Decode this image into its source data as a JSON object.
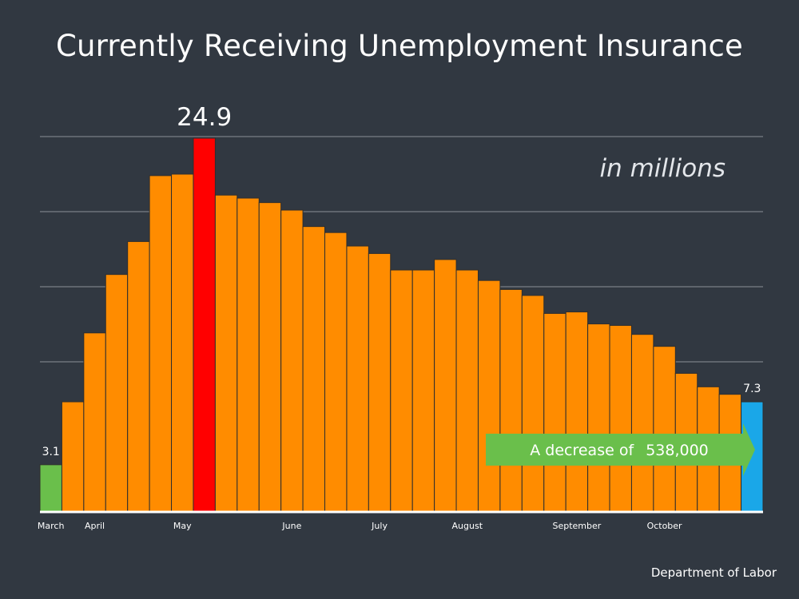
{
  "title": "Currently Receiving Unemployment Insurance",
  "unit_note": "in millions",
  "source": "Department of Labor",
  "callout": {
    "prefix": "A decrease of",
    "value": "538,000",
    "color": "#6abf4b"
  },
  "colors": {
    "background": "#313841",
    "default_bar": "#ff8c00",
    "peak_bar": "#ff0000",
    "first_bar": "#6abf4b",
    "last_bar": "#1aa7e8"
  },
  "chart_data": {
    "type": "bar",
    "ylim": [
      0,
      25
    ],
    "grid": true,
    "month_labels": [
      "March",
      "April",
      "May",
      "June",
      "July",
      "August",
      "September",
      "October"
    ],
    "label_start_index": [
      0,
      2,
      6,
      11,
      15,
      19,
      24,
      28
    ],
    "values": [
      3.1,
      7.3,
      11.9,
      15.8,
      18.0,
      22.4,
      22.5,
      24.9,
      21.1,
      20.9,
      20.6,
      20.1,
      19.0,
      18.6,
      17.7,
      17.2,
      16.1,
      16.1,
      16.8,
      16.1,
      15.4,
      14.8,
      14.4,
      13.2,
      13.3,
      12.5,
      12.4,
      11.8,
      11.0,
      9.2,
      8.3,
      7.8,
      7.3
    ],
    "bar_roles": [
      "first",
      "default",
      "default",
      "default",
      "default",
      "default",
      "default",
      "peak",
      "default",
      "default",
      "default",
      "default",
      "default",
      "default",
      "default",
      "default",
      "default",
      "default",
      "default",
      "default",
      "default",
      "default",
      "default",
      "default",
      "default",
      "default",
      "default",
      "default",
      "default",
      "default",
      "default",
      "default",
      "last"
    ],
    "data_labels": [
      {
        "index": 0,
        "text": "3.1",
        "size": "small"
      },
      {
        "index": 7,
        "text": "24.9",
        "size": "large"
      },
      {
        "index": 32,
        "text": "7.3",
        "size": "small"
      }
    ]
  }
}
